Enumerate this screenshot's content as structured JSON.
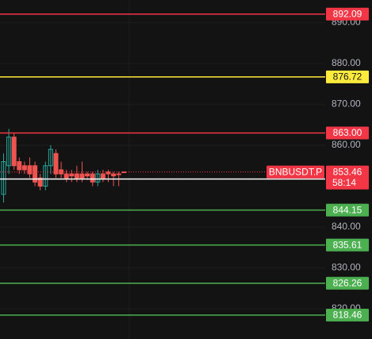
{
  "chart_data": {
    "type": "candlestick",
    "symbol": "BNBUSDT.P",
    "last_price": 853.46,
    "countdown": "58:14",
    "ylim": [
      812.62,
      895.53
    ],
    "yticks": [
      {
        "value": 820,
        "label": "820.00"
      },
      {
        "value": 830,
        "label": "830.00"
      },
      {
        "value": 840,
        "label": "840.00"
      },
      {
        "value": 860,
        "label": "860.00"
      },
      {
        "value": 870,
        "label": "870.00"
      },
      {
        "value": 880,
        "label": "880.00"
      },
      {
        "value": 890,
        "label": "890.00"
      }
    ],
    "grid": true,
    "up_color": "#26a69a",
    "down_color": "#ef5350",
    "last_color": "#f23645",
    "price_lines": [
      {
        "value": 892.09,
        "color": "#f23645",
        "text_color": "#ffffff"
      },
      {
        "value": 876.72,
        "color": "#ffeb3b",
        "text_color": "#131722"
      },
      {
        "value": 863,
        "label": "863.00",
        "color": "#f23645",
        "text_color": "#ffffff"
      },
      {
        "value": 851.74,
        "color": "#ffffff",
        "text_color": "#131722"
      },
      {
        "value": 844.15,
        "color": "#4caf50",
        "text_color": "#ffffff"
      },
      {
        "value": 835.61,
        "color": "#4caf50",
        "text_color": "#ffffff"
      },
      {
        "value": 826.26,
        "color": "#4caf50",
        "text_color": "#ffffff"
      },
      {
        "value": 818.46,
        "color": "#4caf50",
        "text_color": "#ffffff"
      }
    ],
    "candles": [
      {
        "open": 848,
        "high": 858,
        "low": 846,
        "close": 856
      },
      {
        "open": 855,
        "high": 864,
        "low": 853,
        "close": 862
      },
      {
        "open": 862,
        "high": 863,
        "low": 854,
        "close": 855
      },
      {
        "open": 856,
        "high": 857,
        "low": 853,
        "close": 854
      },
      {
        "open": 855,
        "high": 856,
        "low": 853,
        "close": 854
      },
      {
        "open": 855,
        "high": 857,
        "low": 852,
        "close": 853
      },
      {
        "open": 855,
        "high": 856,
        "low": 850,
        "close": 851
      },
      {
        "open": 852,
        "high": 853,
        "low": 849,
        "close": 850
      },
      {
        "open": 850,
        "high": 856,
        "low": 849,
        "close": 855
      },
      {
        "open": 855,
        "high": 860,
        "low": 853,
        "close": 859
      },
      {
        "open": 858,
        "high": 859,
        "low": 852,
        "close": 853
      },
      {
        "open": 854,
        "high": 856,
        "low": 852,
        "close": 853
      },
      {
        "open": 853,
        "high": 854,
        "low": 851,
        "close": 852
      },
      {
        "open": 853,
        "high": 854,
        "low": 851,
        "close": 852.5
      },
      {
        "open": 853,
        "high": 855,
        "low": 851,
        "close": 852
      },
      {
        "open": 853,
        "high": 856,
        "low": 851,
        "close": 852
      },
      {
        "open": 853,
        "high": 853.5,
        "low": 851.5,
        "close": 852.5
      },
      {
        "open": 853,
        "high": 853.5,
        "low": 850,
        "close": 851
      },
      {
        "open": 851,
        "high": 854,
        "low": 850,
        "close": 853
      },
      {
        "open": 853,
        "high": 854,
        "low": 851,
        "close": 852
      },
      {
        "open": 853.5,
        "high": 854,
        "low": 851,
        "close": 853
      },
      {
        "open": 853,
        "high": 853.5,
        "low": 850,
        "close": 852.5
      },
      {
        "open": 853,
        "high": 853.5,
        "low": 850,
        "close": 852.8
      },
      {
        "open": 853.5,
        "high": 853.6,
        "low": 853.4,
        "close": 853.46
      }
    ]
  }
}
